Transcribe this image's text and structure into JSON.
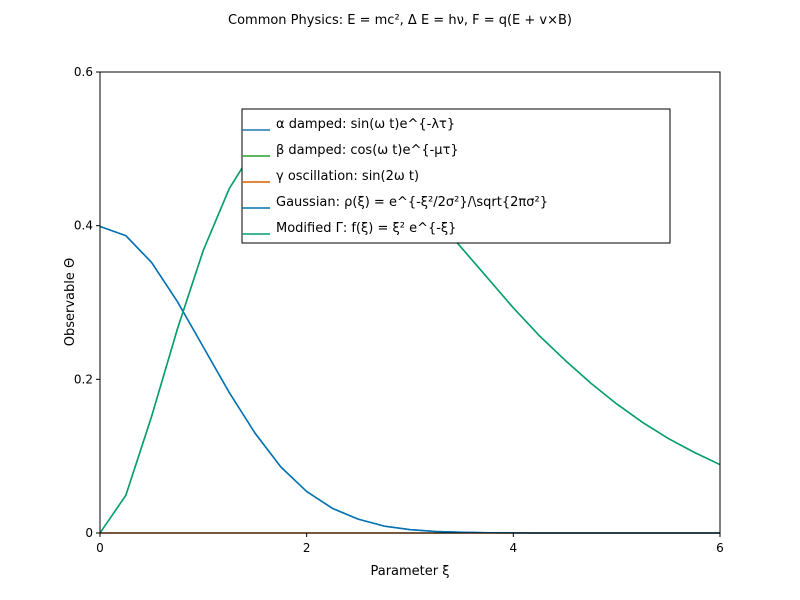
{
  "chart_data": {
    "type": "line",
    "title": "Common Physics: E = mc², Δ E = hν, F = q(E + v×B)",
    "xlabel": "Parameter ξ",
    "ylabel": "Observable Θ",
    "xlim": [
      0,
      6
    ],
    "ylim": [
      0,
      0.6
    ],
    "xticks": [
      0,
      2,
      4,
      6
    ],
    "xtick_labels": [
      "0",
      "2",
      "4",
      "6"
    ],
    "yticks": [
      0,
      0.2,
      0.4,
      0.6
    ],
    "ytick_labels": [
      "0",
      "0.2",
      "0.4",
      "0.6"
    ],
    "grid": false,
    "legend_position": "upper center",
    "x": [
      0,
      0.25,
      0.5,
      0.75,
      1.0,
      1.25,
      1.5,
      1.75,
      2.0,
      2.25,
      2.5,
      2.75,
      3.0,
      3.25,
      3.5,
      3.75,
      4.0,
      4.25,
      4.5,
      4.75,
      5.0,
      5.25,
      5.5,
      5.75,
      6.0
    ],
    "series": [
      {
        "name": "α damped: sin(ω t)e^{-λτ}",
        "color": "#1f77b4",
        "values": [
          0.399,
          0.387,
          0.352,
          0.301,
          0.242,
          0.183,
          0.13,
          0.086,
          0.054,
          0.032,
          0.018,
          0.009,
          0.0044,
          0.002,
          0.0009,
          0.0004,
          0.0001,
          5e-05,
          2e-05,
          0.0,
          0.0,
          0.0,
          0.0,
          0.0,
          0.0
        ]
      },
      {
        "name": "β damped: cos(ω t)e^{-μτ}",
        "color": "#2ca02c",
        "values": [
          0.0,
          0.049,
          0.152,
          0.266,
          0.368,
          0.448,
          0.502,
          0.532,
          0.541,
          0.534,
          0.513,
          0.483,
          0.448,
          0.41,
          0.371,
          0.332,
          0.293,
          0.257,
          0.225,
          0.195,
          0.168,
          0.144,
          0.123,
          0.105,
          0.089
        ]
      },
      {
        "name": "γ oscillation: sin(2ω t)",
        "color": "#d55e00",
        "values": [
          0.0,
          0.0,
          0.0,
          0.0,
          0.0,
          0.0,
          0.0,
          0.0,
          0.0,
          0.0,
          0.0,
          0.0,
          0.0,
          0.0,
          0.0,
          0.0,
          0.0,
          0.0,
          0.0,
          0.0,
          0.0,
          0.0,
          0.0,
          0.0,
          0.0
        ]
      },
      {
        "name": "Gaussian: ρ(ξ) = e^{-ξ²/2σ²}/\\sqrt{2πσ²}",
        "color": "#0072b2",
        "values": [
          0.399,
          0.387,
          0.352,
          0.301,
          0.242,
          0.183,
          0.13,
          0.086,
          0.054,
          0.032,
          0.018,
          0.009,
          0.0044,
          0.002,
          0.0009,
          0.0004,
          0.0001,
          5e-05,
          2e-05,
          0.0,
          0.0,
          0.0,
          0.0,
          0.0,
          0.0
        ]
      },
      {
        "name": "Modified Γ: f(ξ) = ξ² e^{-ξ}",
        "color": "#009e73",
        "values": [
          0.0,
          0.049,
          0.152,
          0.266,
          0.368,
          0.448,
          0.502,
          0.532,
          0.541,
          0.534,
          0.513,
          0.483,
          0.448,
          0.41,
          0.371,
          0.332,
          0.293,
          0.257,
          0.225,
          0.195,
          0.168,
          0.144,
          0.123,
          0.105,
          0.089
        ]
      }
    ]
  }
}
